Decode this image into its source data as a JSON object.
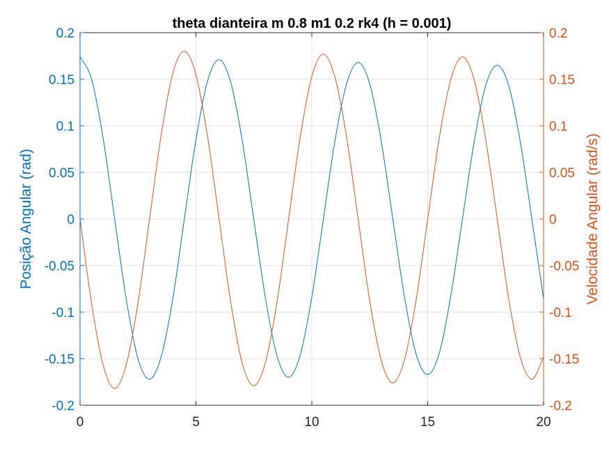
{
  "chart_data": {
    "type": "line",
    "title": "theta dianteira m 0.8 m1 0.2 rk4 (h = 0.001)",
    "xlim": [
      0,
      20
    ],
    "x_ticks": [
      "0",
      "5",
      "10",
      "15",
      "20"
    ],
    "x_tick_values": [
      0,
      5,
      10,
      15,
      20
    ],
    "grid": true,
    "left_axis": {
      "label": "Posição Angular (rad)",
      "ylim": [
        -0.2,
        0.2
      ],
      "ticks": [
        "0.2",
        "0.15",
        "0.1",
        "0.05",
        "0",
        "-0.05",
        "-0.1",
        "-0.15",
        "-0.2"
      ],
      "tick_values": [
        0.2,
        0.15,
        0.1,
        0.05,
        0,
        -0.05,
        -0.1,
        -0.15,
        -0.2
      ],
      "color": "#0072BD"
    },
    "right_axis": {
      "label": "Velocidade Angular (rad/s)",
      "ylim": [
        -0.2,
        0.2
      ],
      "ticks": [
        "0.2",
        "0.15",
        "0.1",
        "0.05",
        "0",
        "-0.05",
        "-0.1",
        "-0.15",
        "-0.2"
      ],
      "tick_values": [
        0.2,
        0.15,
        0.1,
        0.05,
        0,
        -0.05,
        -0.1,
        -0.15,
        -0.2
      ],
      "color": "#D95319"
    },
    "series": [
      {
        "axis": "left",
        "color": "#0072BD",
        "x": [
          0,
          0.5,
          1,
          1.5,
          2,
          2.5,
          3,
          3.5,
          4,
          4.5,
          5,
          5.5,
          6,
          6.5,
          7,
          7.5,
          8,
          8.5,
          9,
          9.5,
          10,
          10.5,
          11,
          11.5,
          12,
          12.5,
          13,
          13.5,
          14,
          14.5,
          15,
          15.5,
          16,
          16.5,
          17,
          17.5,
          18,
          18.5,
          19,
          19.5,
          20
        ],
        "y": [
          0.174,
          0.15,
          0.086,
          -0.001,
          -0.087,
          -0.15,
          -0.172,
          -0.148,
          -0.086,
          0.0,
          0.085,
          0.148,
          0.171,
          0.147,
          0.084,
          -0.001,
          -0.085,
          -0.147,
          -0.17,
          -0.146,
          -0.084,
          0.0,
          0.084,
          0.145,
          0.168,
          0.145,
          0.083,
          -0.001,
          -0.084,
          -0.145,
          -0.167,
          -0.144,
          -0.082,
          0.0,
          0.082,
          0.143,
          0.165,
          0.143,
          0.082,
          -0.001,
          -0.086
        ]
      },
      {
        "axis": "right",
        "color": "#D95319",
        "x": [
          0,
          0.5,
          1,
          1.5,
          2,
          2.5,
          3,
          3.5,
          4,
          4.5,
          5,
          5.5,
          6,
          6.5,
          7,
          7.5,
          8,
          8.5,
          9,
          9.5,
          10,
          10.5,
          11,
          11.5,
          12,
          12.5,
          13,
          13.5,
          14,
          14.5,
          15,
          15.5,
          16,
          16.5,
          17,
          17.5,
          18,
          18.5,
          19,
          19.5,
          20
        ],
        "y": [
          0.0,
          -0.091,
          -0.157,
          -0.182,
          -0.156,
          -0.09,
          0.0,
          0.09,
          0.156,
          0.18,
          0.155,
          0.089,
          0.0,
          -0.089,
          -0.155,
          -0.179,
          -0.154,
          -0.089,
          0.0,
          0.088,
          0.153,
          0.177,
          0.152,
          0.088,
          0.0,
          -0.088,
          -0.152,
          -0.176,
          -0.151,
          -0.087,
          0.0,
          0.087,
          0.15,
          0.174,
          0.15,
          0.086,
          0.0,
          -0.086,
          -0.149,
          -0.172,
          -0.148
        ]
      }
    ]
  }
}
